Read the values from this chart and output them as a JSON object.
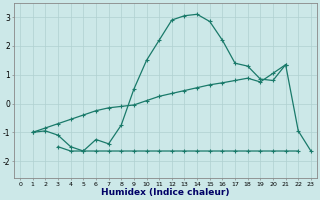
{
  "xlabel": "Humidex (Indice chaleur)",
  "bg_color": "#cce8e8",
  "grid_color": "#b0d0d0",
  "line_color": "#1a7a6a",
  "xlim": [
    -0.5,
    23.5
  ],
  "ylim": [
    -2.6,
    3.5
  ],
  "curve_bell_x": [
    1,
    2,
    3,
    4,
    5,
    6,
    7,
    8,
    9,
    10,
    11,
    12,
    13,
    14,
    15,
    16,
    17,
    18,
    19,
    20,
    21,
    22,
    23
  ],
  "curve_bell_y": [
    -1.0,
    -0.95,
    -1.1,
    -1.5,
    -1.65,
    -1.25,
    -1.4,
    -0.75,
    0.5,
    1.5,
    2.2,
    2.9,
    3.05,
    3.1,
    2.85,
    2.2,
    1.4,
    1.3,
    0.85,
    0.8,
    1.35,
    -0.95,
    -1.65
  ],
  "curve_diag_x": [
    1,
    2,
    3,
    4,
    5,
    6,
    7,
    8,
    9,
    10,
    11,
    12,
    13,
    14,
    15,
    16,
    17,
    18,
    19,
    20,
    21
  ],
  "curve_diag_y": [
    -1.0,
    -0.85,
    -0.7,
    -0.55,
    -0.4,
    -0.25,
    -0.15,
    -0.1,
    -0.05,
    0.1,
    0.25,
    0.35,
    0.45,
    0.55,
    0.65,
    0.72,
    0.8,
    0.88,
    0.75,
    1.05,
    1.35
  ],
  "curve_flat_x": [
    3,
    4,
    5,
    6,
    7,
    8,
    9,
    10,
    11,
    12,
    13,
    14,
    15,
    16,
    17,
    18,
    19,
    20,
    21,
    22
  ],
  "curve_flat_y": [
    -1.5,
    -1.65,
    -1.65,
    -1.65,
    -1.65,
    -1.65,
    -1.65,
    -1.65,
    -1.65,
    -1.65,
    -1.65,
    -1.65,
    -1.65,
    -1.65,
    -1.65,
    -1.65,
    -1.65,
    -1.65,
    -1.65,
    -1.65
  ],
  "xticks": [
    0,
    1,
    2,
    3,
    4,
    5,
    6,
    7,
    8,
    9,
    10,
    11,
    12,
    13,
    14,
    15,
    16,
    17,
    18,
    19,
    20,
    21,
    22,
    23
  ],
  "yticks": [
    -2,
    -1,
    0,
    1,
    2,
    3
  ]
}
